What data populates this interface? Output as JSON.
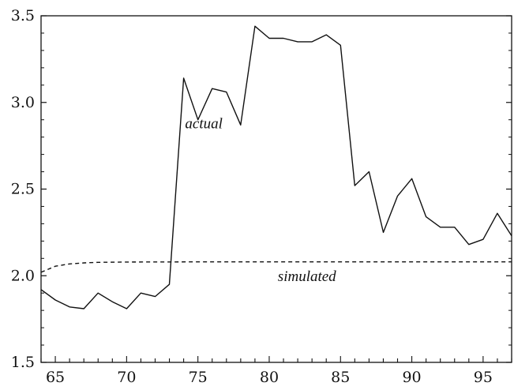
{
  "chart_data": {
    "type": "line",
    "xlim": [
      1964,
      1997
    ],
    "ylim": [
      1.5,
      3.5
    ],
    "x_ticks": [
      65,
      70,
      75,
      80,
      85,
      90,
      95
    ],
    "y_ticks": [
      "1.5",
      "2.0",
      "2.5",
      "3.0",
      "3.5"
    ],
    "grid": false,
    "series": [
      {
        "name": "actual",
        "style": "solid",
        "color": "#111111",
        "x": [
          1964,
          1965,
          1966,
          1967,
          1968,
          1969,
          1970,
          1971,
          1972,
          1973,
          1974,
          1975,
          1976,
          1977,
          1978,
          1979,
          1980,
          1981,
          1982,
          1983,
          1984,
          1985,
          1986,
          1987,
          1988,
          1989,
          1990,
          1991,
          1992,
          1993,
          1994,
          1995,
          1996,
          1997
        ],
        "y": [
          1.92,
          1.86,
          1.82,
          1.81,
          1.9,
          1.85,
          1.81,
          1.9,
          1.88,
          1.95,
          3.14,
          2.9,
          3.08,
          3.06,
          2.87,
          3.44,
          3.37,
          3.37,
          3.35,
          3.35,
          3.39,
          3.33,
          2.52,
          2.6,
          2.25,
          2.46,
          2.56,
          2.34,
          2.28,
          2.28,
          2.18,
          2.21,
          2.36,
          2.23
        ]
      },
      {
        "name": "simulated",
        "style": "dashed",
        "color": "#111111",
        "x": [
          1964,
          1965,
          1966,
          1967,
          1968,
          1970,
          1975,
          1980,
          1985,
          1990,
          1997
        ],
        "y": [
          2.02,
          2.055,
          2.068,
          2.074,
          2.077,
          2.079,
          2.08,
          2.08,
          2.08,
          2.08,
          2.08
        ]
      }
    ],
    "annotations": [
      {
        "text": "actual",
        "x": 1974.1,
        "y": 2.85
      },
      {
        "text": "simulated",
        "x": 1980.6,
        "y": 1.97
      }
    ]
  }
}
